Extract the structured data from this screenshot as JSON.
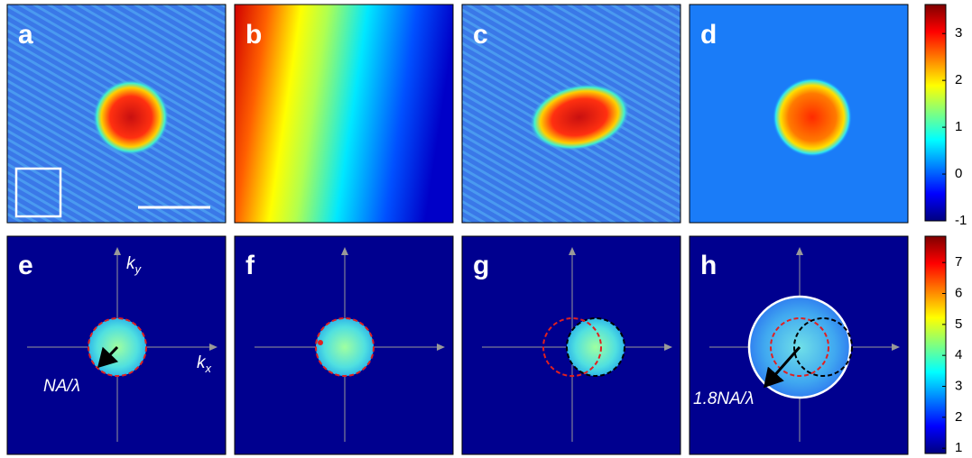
{
  "panels": [
    {
      "label": "a"
    },
    {
      "label": "b"
    },
    {
      "label": "c"
    },
    {
      "label": "d"
    },
    {
      "label": "e"
    },
    {
      "label": "f"
    },
    {
      "label": "g"
    },
    {
      "label": "h"
    }
  ],
  "annotations": {
    "ky": {
      "base": "k",
      "sub": "y"
    },
    "kx": {
      "base": "k",
      "sub": "x"
    },
    "na": "NA/λ",
    "na18": "1.8NA/λ"
  },
  "colorbars": [
    {
      "ylim": [
        -1,
        3.62
      ],
      "yticks": [
        -1,
        0,
        1,
        2,
        3
      ]
    },
    {
      "ylim": [
        0.83,
        7.85
      ],
      "yticks": [
        1,
        2,
        3,
        4,
        5,
        6,
        7
      ]
    }
  ]
}
